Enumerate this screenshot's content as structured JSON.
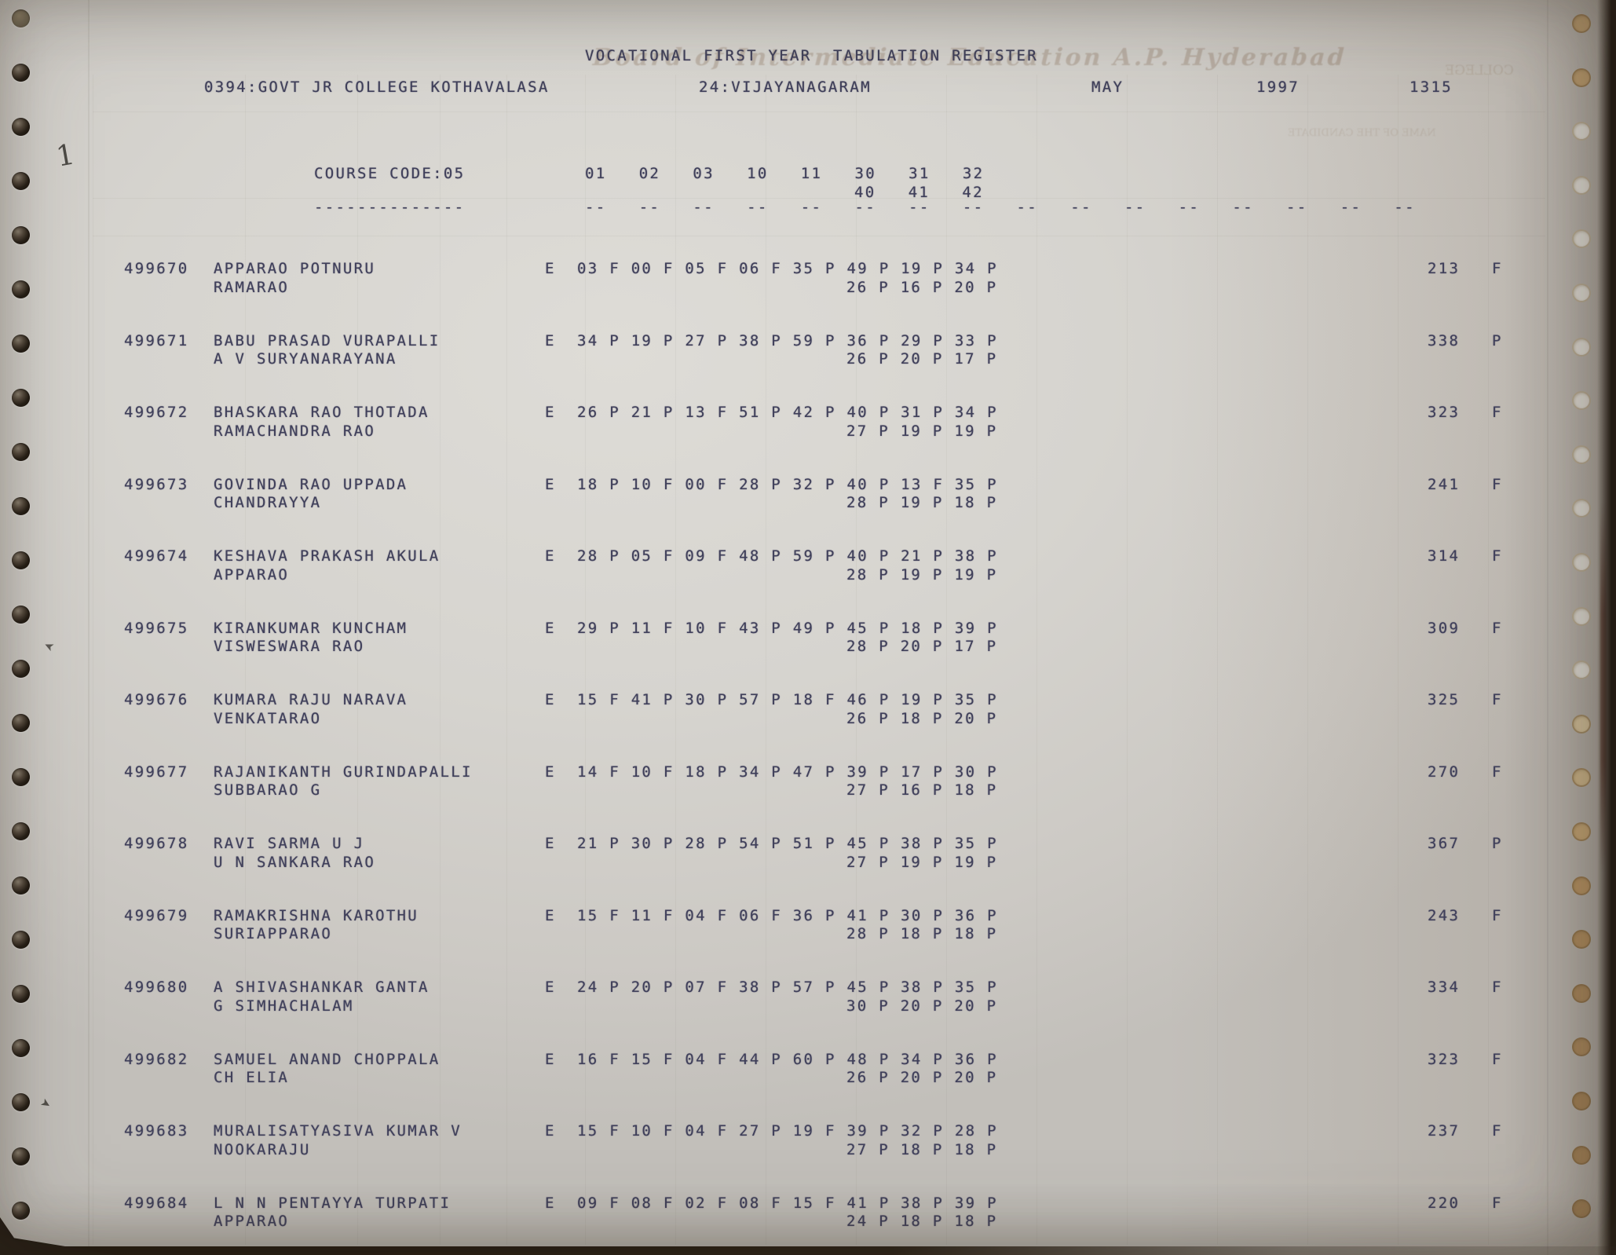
{
  "document": {
    "title": "VOCATIONAL FIRST YEAR  TABULATION REGISTER",
    "college": "0394:GOVT JR COLLEGE KOTHAVALASA",
    "district": "24:VIJAYANAGARAM",
    "month": "MAY",
    "year": "1997",
    "sheet_number": "1315",
    "course_label": "COURSE CODE:05",
    "course_underline": "--------------",
    "subject_columns_row1": "01   02   03   10   11   30   31   32",
    "subject_columns_row2": "40   41   42",
    "column_dashes": "--   --   --   --   --   --   --   --   --   --   --   --   --   --   --   --"
  },
  "ghosts": {
    "board_title": "Board of Intermediate Education A.P. Hyderabad",
    "college_label": "COLLEGE",
    "candidate_label": "NAME OF THE CANDIDATE"
  },
  "annotations": [
    {
      "kind": "handwritten-numeral",
      "glyph": "1"
    },
    {
      "kind": "handwritten-tick",
      "glyph": "➤"
    },
    {
      "kind": "handwritten-tick",
      "glyph": "➤"
    }
  ],
  "students": [
    {
      "reg": "499670",
      "name": "APPARAO POTNURU",
      "parent": "RAMARAO",
      "medium": "E",
      "marks1": "03 F 00 F 05 F 06 F 35 P 49 P 19 P 34 P",
      "marks2": "26 P 16 P 20 P",
      "total": "213",
      "result": "F"
    },
    {
      "reg": "499671",
      "name": "BABU PRASAD VURAPALLI",
      "parent": "A V SURYANARAYANA",
      "medium": "E",
      "marks1": "34 P 19 P 27 P 38 P 59 P 36 P 29 P 33 P",
      "marks2": "26 P 20 P 17 P",
      "total": "338",
      "result": "P"
    },
    {
      "reg": "499672",
      "name": "BHASKARA RAO THOTADA",
      "parent": "RAMACHANDRA RAO",
      "medium": "E",
      "marks1": "26 P 21 P 13 F 51 P 42 P 40 P 31 P 34 P",
      "marks2": "27 P 19 P 19 P",
      "total": "323",
      "result": "F"
    },
    {
      "reg": "499673",
      "name": "GOVINDA RAO UPPADA",
      "parent": "CHANDRAYYA",
      "medium": "E",
      "marks1": "18 P 10 F 00 F 28 P 32 P 40 P 13 F 35 P",
      "marks2": "28 P 19 P 18 P",
      "total": "241",
      "result": "F"
    },
    {
      "reg": "499674",
      "name": "KESHAVA PRAKASH AKULA",
      "parent": "APPARAO",
      "medium": "E",
      "marks1": "28 P 05 F 09 F 48 P 59 P 40 P 21 P 38 P",
      "marks2": "28 P 19 P 19 P",
      "total": "314",
      "result": "F"
    },
    {
      "reg": "499675",
      "name": "KIRANKUMAR KUNCHAM",
      "parent": "VISWESWARA RAO",
      "medium": "E",
      "marks1": "29 P 11 F 10 F 43 P 49 P 45 P 18 P 39 P",
      "marks2": "28 P 20 P 17 P",
      "total": "309",
      "result": "F"
    },
    {
      "reg": "499676",
      "name": "KUMARA RAJU NARAVA",
      "parent": "VENKATARAO",
      "medium": "E",
      "marks1": "15 F 41 P 30 P 57 P 18 F 46 P 19 P 35 P",
      "marks2": "26 P 18 P 20 P",
      "total": "325",
      "result": "F"
    },
    {
      "reg": "499677",
      "name": "RAJANIKANTH GURINDAPALLI",
      "parent": "SUBBARAO G",
      "medium": "E",
      "marks1": "14 F 10 F 18 P 34 P 47 P 39 P 17 P 30 P",
      "marks2": "27 P 16 P 18 P",
      "total": "270",
      "result": "F"
    },
    {
      "reg": "499678",
      "name": "RAVI SARMA U J",
      "parent": "U N SANKARA RAO",
      "medium": "E",
      "marks1": "21 P 30 P 28 P 54 P 51 P 45 P 38 P 35 P",
      "marks2": "27 P 19 P 19 P",
      "total": "367",
      "result": "P"
    },
    {
      "reg": "499679",
      "name": "RAMAKRISHNA KAROTHU",
      "parent": "SURIAPPARAO",
      "medium": "E",
      "marks1": "15 F 11 F 04 F 06 F 36 P 41 P 30 P 36 P",
      "marks2": "28 P 18 P 18 P",
      "total": "243",
      "result": "F"
    },
    {
      "reg": "499680",
      "name": "A SHIVASHANKAR GANTA",
      "parent": "G SIMHACHALAM",
      "medium": "E",
      "marks1": "24 P 20 P 07 F 38 P 57 P 45 P 38 P 35 P",
      "marks2": "30 P 20 P 20 P",
      "total": "334",
      "result": "F"
    },
    {
      "reg": "499682",
      "name": "SAMUEL ANAND CHOPPALA",
      "parent": "CH ELIA",
      "medium": "E",
      "marks1": "16 F 15 F 04 F 44 P 60 P 48 P 34 P 36 P",
      "marks2": "26 P 20 P 20 P",
      "total": "323",
      "result": "F"
    },
    {
      "reg": "499683",
      "name": "MURALISATYASIVA KUMAR V",
      "parent": "NOOKARAJU",
      "medium": "E",
      "marks1": "15 F 10 F 04 F 27 P 19 F 39 P 32 P 28 P",
      "marks2": "27 P 18 P 18 P",
      "total": "237",
      "result": "F"
    },
    {
      "reg": "499684",
      "name": "L N N PENTAYYA TURPATI",
      "parent": "APPARAO",
      "medium": "E",
      "marks1": "09 F 08 F 02 F 08 F 15 F 41 P 38 P 39 P",
      "marks2": "24 P 18 P 18 P",
      "total": "220",
      "result": "F"
    }
  ]
}
